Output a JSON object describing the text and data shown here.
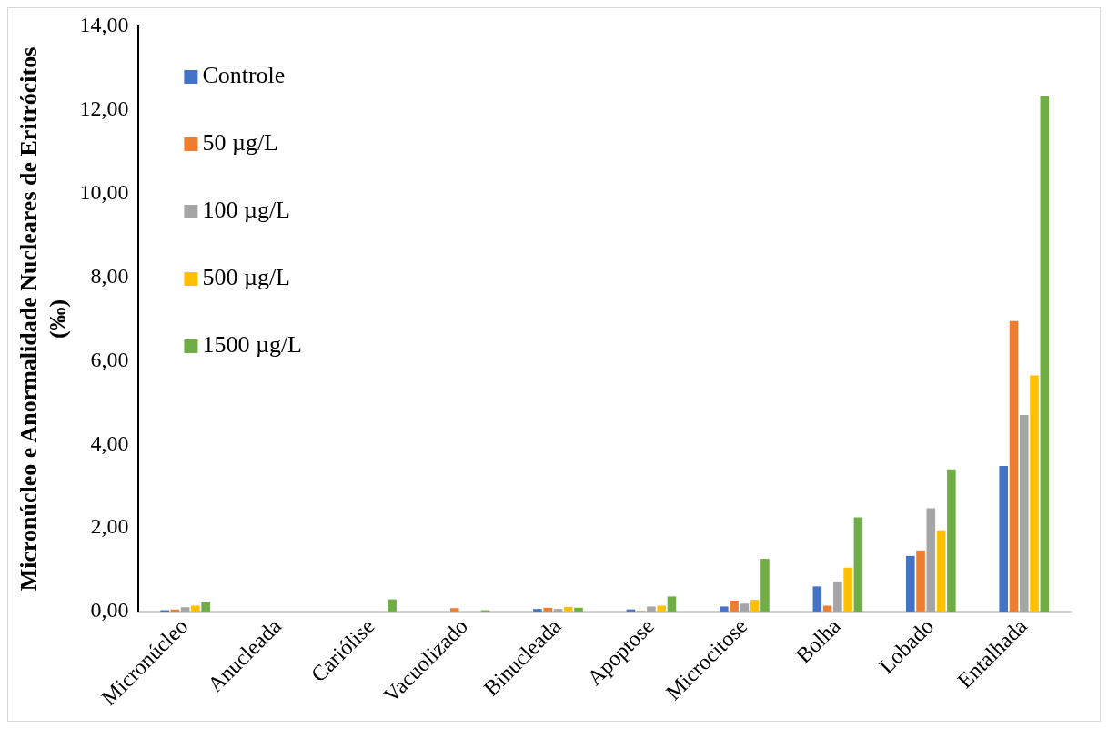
{
  "chart_data": {
    "type": "bar",
    "ylabel": "Micronúcleo e Anormalidade Nucleares de Eritrócitos (‰)",
    "categories": [
      "Micronúcleo",
      "Anucleada",
      "Cariólise",
      "Vacuolizado",
      "Binucleada",
      "Apoptose",
      "Microcitose",
      "Bolha",
      "Lobado",
      "Entalhada"
    ],
    "series": [
      {
        "name": "Controle",
        "color": "#4472c4",
        "values": [
          0.03,
          0,
          0,
          0,
          0.06,
          0.05,
          0.12,
          0.6,
          1.33,
          3.48
        ]
      },
      {
        "name": "50 µg/L",
        "color": "#ed7d31",
        "values": [
          0.05,
          0,
          0,
          0.08,
          0.09,
          0.01,
          0.26,
          0.14,
          1.46,
          6.95
        ]
      },
      {
        "name": "100 µg/L",
        "color": "#a5a5a5",
        "values": [
          0.1,
          0,
          null,
          null,
          0.06,
          0.12,
          0.19,
          0.72,
          2.47,
          4.7
        ]
      },
      {
        "name": "500 µg/L",
        "color": "#ffc000",
        "values": [
          0.14,
          0,
          0,
          0,
          0.11,
          0.14,
          0.28,
          1.05,
          1.94,
          5.65
        ]
      },
      {
        "name": "1500 µg/L",
        "color": "#70ad47",
        "values": [
          0.22,
          0,
          0.29,
          0.03,
          0.09,
          0.36,
          1.26,
          2.25,
          3.4,
          12.33
        ]
      }
    ],
    "ylim": [
      0,
      14
    ],
    "yticks": [
      {
        "value": 0,
        "label": "0,00"
      },
      {
        "value": 2,
        "label": "2,00"
      },
      {
        "value": 4,
        "label": "4,00"
      },
      {
        "value": 6,
        "label": "6,00"
      },
      {
        "value": 8,
        "label": "8,00"
      },
      {
        "value": 10,
        "label": "10,00"
      },
      {
        "value": 12,
        "label": "12,00"
      },
      {
        "value": 14,
        "label": "14,00"
      }
    ],
    "grid": false,
    "legend": "top left"
  }
}
